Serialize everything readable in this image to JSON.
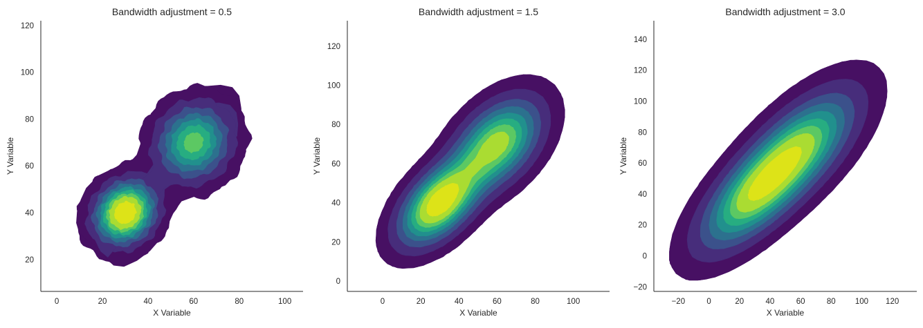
{
  "chart_data": [
    {
      "type": "kde-contour",
      "title": "Bandwidth adjustment = 0.5",
      "xlabel": "X Variable",
      "ylabel": "Y Variable",
      "bw_adjust": 0.5,
      "xlim": [
        -7,
        108
      ],
      "ylim": [
        6.4,
        122
      ],
      "xticks": [
        0,
        20,
        40,
        60,
        80,
        100
      ],
      "yticks": [
        20,
        40,
        60,
        80,
        100,
        120
      ],
      "levels": 10
    },
    {
      "type": "kde-contour",
      "title": "Bandwidth adjustment = 1.5",
      "xlabel": "X Variable",
      "ylabel": "Y Variable",
      "bw_adjust": 1.5,
      "xlim": [
        -18.5,
        119
      ],
      "ylim": [
        -5.3,
        133
      ],
      "xticks": [
        0,
        20,
        40,
        60,
        80,
        100
      ],
      "yticks": [
        0,
        20,
        40,
        60,
        80,
        100,
        120
      ],
      "levels": 10
    },
    {
      "type": "kde-contour",
      "title": "Bandwidth adjustment = 3.0",
      "xlabel": "X Variable",
      "ylabel": "Y Variable",
      "bw_adjust": 3.0,
      "xlim": [
        -36,
        136
      ],
      "ylim": [
        -23,
        152
      ],
      "xticks": [
        -20,
        0,
        20,
        40,
        60,
        80,
        100,
        120
      ],
      "yticks": [
        -20,
        0,
        20,
        40,
        60,
        80,
        100,
        120,
        140
      ],
      "levels": 10
    }
  ],
  "clusters": [
    {
      "mean": [
        30,
        40
      ],
      "sd": 7,
      "weight": 0.5
    },
    {
      "mean": [
        60,
        70
      ],
      "sd": 9,
      "weight": 0.5
    }
  ],
  "colormap": [
    "#471063",
    "#472d7b",
    "#3b518b",
    "#2c718e",
    "#21908d",
    "#27ad81",
    "#5cc863",
    "#aadc32",
    "#dde318"
  ]
}
